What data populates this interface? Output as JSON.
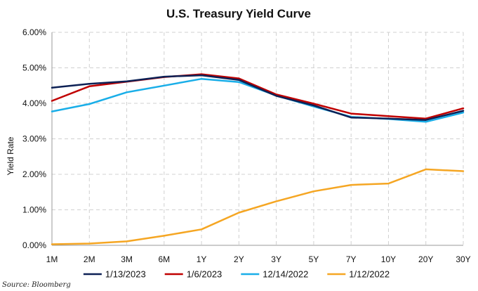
{
  "chart_data": {
    "type": "line",
    "title": "U.S. Treasury Yield Curve",
    "xlabel": "",
    "ylabel": "Yield Rate",
    "categories": [
      "1M",
      "2M",
      "3M",
      "6M",
      "1Y",
      "2Y",
      "3Y",
      "5Y",
      "7Y",
      "10Y",
      "20Y",
      "30Y"
    ],
    "ylim": [
      0,
      6
    ],
    "yticks": [
      "0.00%",
      "1.00%",
      "2.00%",
      "3.00%",
      "4.00%",
      "5.00%",
      "6.00%"
    ],
    "grid": true,
    "legend_position": "bottom",
    "series": [
      {
        "name": "1/13/2023",
        "color": "#0d2155",
        "values": [
          4.44,
          4.55,
          4.62,
          4.75,
          4.79,
          4.66,
          4.21,
          3.94,
          3.6,
          3.57,
          3.53,
          3.79
        ]
      },
      {
        "name": "1/6/2023",
        "color": "#c00000",
        "values": [
          4.07,
          4.48,
          4.61,
          4.74,
          4.82,
          4.7,
          4.25,
          3.99,
          3.71,
          3.64,
          3.57,
          3.86
        ]
      },
      {
        "name": "12/14/2022",
        "color": "#19aee8",
        "values": [
          3.77,
          3.98,
          4.31,
          4.5,
          4.69,
          4.6,
          4.22,
          3.91,
          3.62,
          3.56,
          3.48,
          3.74
        ]
      },
      {
        "name": "1/12/2022",
        "color": "#f5a623",
        "values": [
          0.03,
          0.05,
          0.11,
          0.27,
          0.45,
          0.92,
          1.24,
          1.52,
          1.7,
          1.74,
          2.14,
          2.09
        ]
      }
    ],
    "source": "Source: Bloomberg"
  }
}
